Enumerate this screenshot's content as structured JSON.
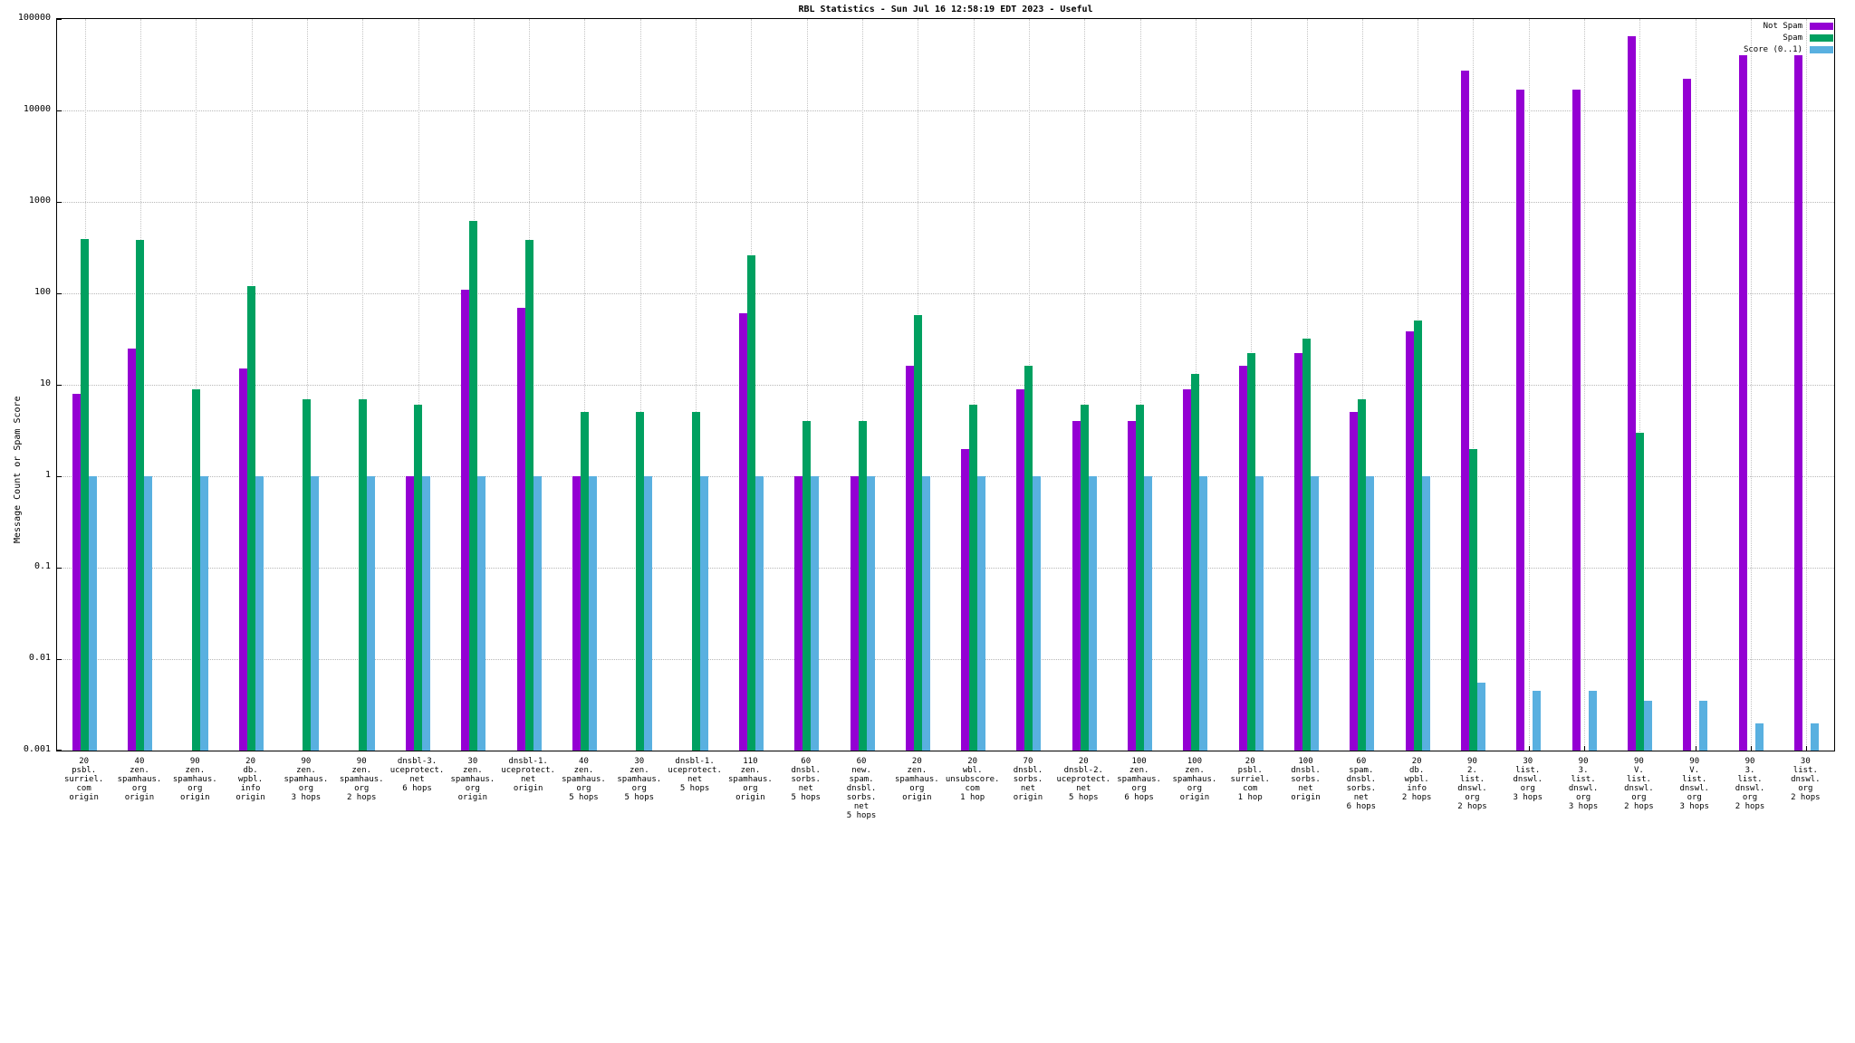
{
  "title": "RBL Statistics - Sun Jul 16 12:58:19 EDT 2023 - Useful",
  "ylabel": "Message Count or Spam Score",
  "legend": [
    {
      "label": "Not Spam",
      "color": "#9400d3"
    },
    {
      "label": "Spam",
      "color": "#00a060"
    },
    {
      "label": "Score (0..1)",
      "color": "#59b0e0"
    }
  ],
  "chart_data": {
    "type": "bar",
    "yscale": "log",
    "ylim": [
      0.001,
      100000
    ],
    "ytick_labels": [
      "0.001",
      "0.01",
      "0.1",
      "1",
      "10",
      "100",
      "1000",
      "10000",
      "100000"
    ],
    "grid": true,
    "legend_position": "top-right",
    "title": "RBL Statistics - Sun Jul 16 12:58:19 EDT 2023 - Useful",
    "ylabel": "Message Count or Spam Score",
    "xlabel": "",
    "categories": [
      [
        "20",
        "psbl.",
        "surriel.",
        "com",
        "origin"
      ],
      [
        "40",
        "zen.",
        "spamhaus.",
        "org",
        "origin"
      ],
      [
        "90",
        "zen.",
        "spamhaus.",
        "org",
        "origin"
      ],
      [
        "20",
        "db.",
        "wpbl.",
        "info",
        "origin"
      ],
      [
        "90",
        "zen.",
        "spamhaus.",
        "org",
        "3 hops"
      ],
      [
        "90",
        "zen.",
        "spamhaus.",
        "org",
        "2 hops"
      ],
      [
        "dnsbl-3.",
        "uceprotect.",
        "net",
        "6 hops"
      ],
      [
        "30",
        "zen.",
        "spamhaus.",
        "org",
        "origin"
      ],
      [
        "dnsbl-1.",
        "uceprotect.",
        "net",
        "origin"
      ],
      [
        "40",
        "zen.",
        "spamhaus.",
        "org",
        "5 hops"
      ],
      [
        "30",
        "zen.",
        "spamhaus.",
        "org",
        "5 hops"
      ],
      [
        "dnsbl-1.",
        "uceprotect.",
        "net",
        "5 hops"
      ],
      [
        "110",
        "zen.",
        "spamhaus.",
        "org",
        "origin"
      ],
      [
        "60",
        "dnsbl.",
        "sorbs.",
        "net",
        "5 hops"
      ],
      [
        "60",
        "new.",
        "spam.",
        "dnsbl.",
        "sorbs.",
        "net",
        "5 hops"
      ],
      [
        "20",
        "zen.",
        "spamhaus.",
        "org",
        "origin"
      ],
      [
        "20",
        "wbl.",
        "unsubscore.",
        "com",
        "1 hop"
      ],
      [
        "70",
        "dnsbl.",
        "sorbs.",
        "net",
        "origin"
      ],
      [
        "20",
        "dnsbl-2.",
        "uceprotect.",
        "net",
        "5 hops"
      ],
      [
        "100",
        "zen.",
        "spamhaus.",
        "org",
        "6 hops"
      ],
      [
        "100",
        "zen.",
        "spamhaus.",
        "org",
        "origin"
      ],
      [
        "20",
        "psbl.",
        "surriel.",
        "com",
        "1 hop"
      ],
      [
        "100",
        "dnsbl.",
        "sorbs.",
        "net",
        "origin"
      ],
      [
        "60",
        "spam.",
        "dnsbl.",
        "sorbs.",
        "net",
        "6 hops"
      ],
      [
        "20",
        "db.",
        "wpbl.",
        "info",
        "2 hops"
      ],
      [
        "90",
        "2.",
        "list.",
        "dnswl.",
        "org",
        "2 hops"
      ],
      [
        "30",
        "list.",
        "dnswl.",
        "org",
        "3 hops"
      ],
      [
        "90",
        "3.",
        "list.",
        "dnswl.",
        "org",
        "3 hops"
      ],
      [
        "90",
        "V.",
        "list.",
        "dnswl.",
        "org",
        "2 hops"
      ],
      [
        "90",
        "V.",
        "list.",
        "dnswl.",
        "org",
        "3 hops"
      ],
      [
        "90",
        "3.",
        "list.",
        "dnswl.",
        "org",
        "2 hops"
      ],
      [
        "30",
        "list.",
        "dnswl.",
        "org",
        "2 hops"
      ]
    ],
    "series": [
      {
        "name": "Not Spam",
        "color": "#9400d3",
        "values": [
          8,
          25,
          0,
          15,
          0,
          0,
          1,
          110,
          70,
          1,
          0,
          0,
          60,
          1,
          1,
          16,
          2,
          9,
          4,
          4,
          9,
          16,
          22,
          5,
          38,
          27000,
          17000,
          17000,
          65000,
          22000,
          40000,
          40000
        ]
      },
      {
        "name": "Spam",
        "color": "#00a060",
        "values": [
          390,
          380,
          9,
          120,
          7,
          7,
          6,
          620,
          380,
          5,
          5,
          5,
          260,
          4,
          4,
          58,
          6,
          16,
          6,
          6,
          13,
          22,
          32,
          7,
          50,
          2,
          0,
          0,
          3,
          0,
          0,
          0
        ]
      },
      {
        "name": "Score (0..1)",
        "color": "#59b0e0",
        "values": [
          1,
          1,
          1,
          1,
          1,
          1,
          1,
          1,
          1,
          1,
          1,
          1,
          1,
          1,
          1,
          1,
          1,
          1,
          1,
          1,
          1,
          1,
          1,
          1,
          1,
          0.0055,
          0.0045,
          0.0045,
          0.0035,
          0.0035,
          0.002,
          0.002
        ]
      }
    ]
  }
}
